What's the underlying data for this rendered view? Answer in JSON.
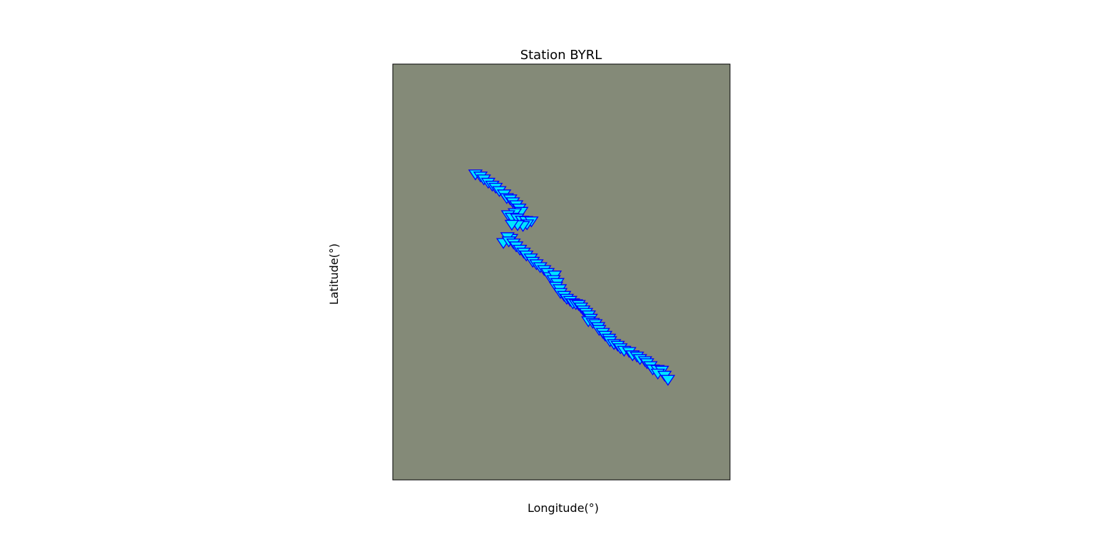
{
  "chart_data": {
    "type": "scatter",
    "title": "Station BYRL",
    "xlabel": "Longitude(°)",
    "ylabel": "Latitude(°)",
    "xlim": [
      0,
      100
    ],
    "ylim": [
      0,
      100
    ],
    "grid": false,
    "ticks_shown": false,
    "background_color": "#848a78",
    "marker": "triangle_down",
    "marker_face_color": "#00e5ff",
    "marker_edge_color": "#0000ff",
    "points": [
      {
        "x": 24.5,
        "y": 73.6
      },
      {
        "x": 26.0,
        "y": 73.1
      },
      {
        "x": 27.0,
        "y": 72.4
      },
      {
        "x": 28.3,
        "y": 71.6
      },
      {
        "x": 29.5,
        "y": 70.9
      },
      {
        "x": 30.5,
        "y": 70.4
      },
      {
        "x": 31.6,
        "y": 69.6
      },
      {
        "x": 33.0,
        "y": 68.8
      },
      {
        "x": 33.8,
        "y": 67.9
      },
      {
        "x": 34.8,
        "y": 67.6
      },
      {
        "x": 35.6,
        "y": 66.9
      },
      {
        "x": 36.6,
        "y": 66.2
      },
      {
        "x": 37.5,
        "y": 65.4
      },
      {
        "x": 38.1,
        "y": 64.6
      },
      {
        "x": 36.2,
        "y": 64.3
      },
      {
        "x": 34.2,
        "y": 63.8
      },
      {
        "x": 35.3,
        "y": 63.2
      },
      {
        "x": 36.9,
        "y": 63.0
      },
      {
        "x": 38.3,
        "y": 62.5
      },
      {
        "x": 39.5,
        "y": 62.4
      },
      {
        "x": 41.1,
        "y": 62.3
      },
      {
        "x": 39.8,
        "y": 61.6
      },
      {
        "x": 38.6,
        "y": 61.2
      },
      {
        "x": 37.0,
        "y": 61.4
      },
      {
        "x": 35.3,
        "y": 61.5
      },
      {
        "x": 35.1,
        "y": 58.1
      },
      {
        "x": 34.0,
        "y": 58.5
      },
      {
        "x": 32.8,
        "y": 57.1
      },
      {
        "x": 34.4,
        "y": 57.5
      },
      {
        "x": 35.8,
        "y": 57.0
      },
      {
        "x": 36.6,
        "y": 56.3
      },
      {
        "x": 37.7,
        "y": 55.5
      },
      {
        "x": 38.8,
        "y": 54.8
      },
      {
        "x": 39.6,
        "y": 54.1
      },
      {
        "x": 40.9,
        "y": 53.4
      },
      {
        "x": 41.5,
        "y": 52.6
      },
      {
        "x": 42.6,
        "y": 52.0
      },
      {
        "x": 43.7,
        "y": 51.3
      },
      {
        "x": 44.9,
        "y": 50.6
      },
      {
        "x": 45.9,
        "y": 49.9
      },
      {
        "x": 46.6,
        "y": 48.9
      },
      {
        "x": 48.0,
        "y": 49.3
      },
      {
        "x": 47.7,
        "y": 48.2
      },
      {
        "x": 48.8,
        "y": 47.5
      },
      {
        "x": 48.4,
        "y": 46.6
      },
      {
        "x": 49.5,
        "y": 46.0
      },
      {
        "x": 49.7,
        "y": 45.1
      },
      {
        "x": 50.8,
        "y": 44.4
      },
      {
        "x": 51.6,
        "y": 43.7
      },
      {
        "x": 52.6,
        "y": 43.2
      },
      {
        "x": 53.4,
        "y": 42.6
      },
      {
        "x": 54.3,
        "y": 42.4
      },
      {
        "x": 55.1,
        "y": 42.2
      },
      {
        "x": 55.8,
        "y": 41.6
      },
      {
        "x": 56.5,
        "y": 40.9
      },
      {
        "x": 57.3,
        "y": 40.3
      },
      {
        "x": 58.1,
        "y": 39.7
      },
      {
        "x": 58.7,
        "y": 38.9
      },
      {
        "x": 58.0,
        "y": 38.3
      },
      {
        "x": 59.3,
        "y": 37.9
      },
      {
        "x": 60.1,
        "y": 37.6
      },
      {
        "x": 60.9,
        "y": 36.9
      },
      {
        "x": 61.2,
        "y": 36.2
      },
      {
        "x": 62.3,
        "y": 35.5
      },
      {
        "x": 63.0,
        "y": 34.8
      },
      {
        "x": 64.1,
        "y": 34.1
      },
      {
        "x": 64.4,
        "y": 33.5
      },
      {
        "x": 65.6,
        "y": 32.8
      },
      {
        "x": 66.7,
        "y": 32.4
      },
      {
        "x": 67.5,
        "y": 31.8
      },
      {
        "x": 68.6,
        "y": 31.2
      },
      {
        "x": 70.1,
        "y": 30.9
      },
      {
        "x": 71.1,
        "y": 30.1
      },
      {
        "x": 72.4,
        "y": 29.8
      },
      {
        "x": 73.3,
        "y": 29.2
      },
      {
        "x": 74.8,
        "y": 28.7
      },
      {
        "x": 75.4,
        "y": 28.2
      },
      {
        "x": 76.4,
        "y": 27.5
      },
      {
        "x": 77.1,
        "y": 26.7
      },
      {
        "x": 78.5,
        "y": 26.6
      },
      {
        "x": 79.8,
        "y": 26.4
      },
      {
        "x": 78.6,
        "y": 25.7
      },
      {
        "x": 80.6,
        "y": 25.2
      },
      {
        "x": 81.6,
        "y": 24.2
      }
    ]
  }
}
